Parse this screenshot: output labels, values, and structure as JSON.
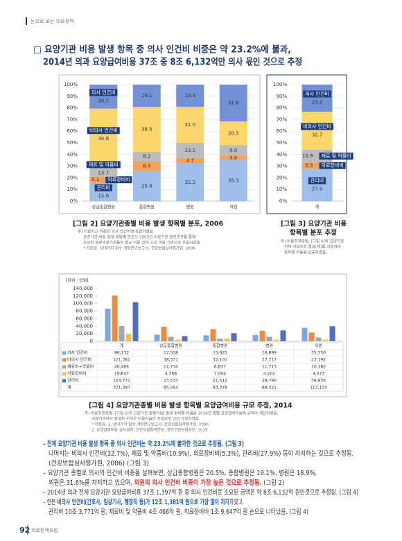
{
  "header": {
    "section": "눈으로 보는 의료정책"
  },
  "title": [
    "□ 요양기관 비용 발생 항목 중 의사 인건비 비중은 약 23.2%에 불과,",
    "2014년 의과 요양급여비용 37조 중 8조 6,132억만 의사 몫인 것으로 추정"
  ],
  "chart_data": [
    {
      "type": "bar",
      "stacked": true,
      "categories": [
        "상급종합병원",
        "종합병원",
        "병원",
        "의원"
      ],
      "ylim": [
        0,
        100
      ],
      "yticks": [
        {
          "value": 0,
          "label": "0%"
        },
        {
          "value": 10,
          "label": "10%"
        },
        {
          "value": 20,
          "label": "20%"
        },
        {
          "value": 30,
          "label": "30%"
        },
        {
          "value": 40,
          "label": "40%"
        },
        {
          "value": 50,
          "label": "50%"
        },
        {
          "value": 60,
          "label": "60%"
        },
        {
          "value": 70,
          "label": "70%"
        },
        {
          "value": 80,
          "label": "80%"
        },
        {
          "value": 90,
          "label": "90%"
        },
        {
          "value": 100,
          "label": "100%"
        }
      ],
      "grid": true,
      "series": [
        {
          "name": "관리비",
          "color": "#9dbfe9",
          "values": [
            15.8,
            25.8,
            32.2,
            35.3
          ],
          "value_labels": [
            "15.8",
            "25.8",
            "32.2",
            "35.3"
          ]
        },
        {
          "name": "의료장비비",
          "color": "#f4a25a",
          "values": [
            5.1,
            8.4,
            4.7,
            3.6
          ],
          "value_labels": [
            "5.1",
            "8.4",
            "4.7",
            "3.6"
          ]
        },
        {
          "name": "재료 및 약품비",
          "color": "#bcbcbc",
          "values": [
            13.7,
            8.2,
            13.1,
            9.0
          ],
          "value_labels": [
            "13.7",
            "8.2",
            "13.1",
            "9.0"
          ]
        },
        {
          "name": "비의사 인건비",
          "color": "#fbd66b",
          "values": [
            44.8,
            38.5,
            31.0,
            20.5
          ],
          "value_labels": [
            "44.8",
            "38.5",
            "31.0",
            "20.5"
          ]
        },
        {
          "name": "의사 인건비",
          "color": "#7391d6",
          "values": [
            20.5,
            19.1,
            18.9,
            31.6
          ],
          "value_labels": [
            "20.5",
            "19.1",
            "18.9",
            "31.6"
          ]
        }
      ],
      "caption": "[그림 2] 요양기관종별 비용 발생 항목별 분포, 2006",
      "notes": [
        "주) 의료사고 비용은 의사 인건비에 포함하였음.",
        "요양기관 비용 발생 항목별 분포는 2005년 의료기관 표본조사를 통해",
        "조사된 표본의료기관들의 평균 비용 급여 소요 비용 기준으로 산출되었음.",
        "* 자료원: 상대가치 점수 개정연구보고서, 건강보험심사평가원, 2006"
      ]
    },
    {
      "type": "bar",
      "stacked": true,
      "categories": [
        "계"
      ],
      "ylim": [
        0,
        100
      ],
      "yticks": [
        {
          "value": 0,
          "label": "0%"
        },
        {
          "value": 10,
          "label": "10%"
        },
        {
          "value": 20,
          "label": "20%"
        },
        {
          "value": 30,
          "label": "30%"
        },
        {
          "value": 40,
          "label": "40%"
        },
        {
          "value": 50,
          "label": "50%"
        },
        {
          "value": 60,
          "label": "60%"
        },
        {
          "value": 70,
          "label": "70%"
        },
        {
          "value": 80,
          "label": "80%"
        },
        {
          "value": 90,
          "label": "90%"
        },
        {
          "value": 100,
          "label": "100%"
        }
      ],
      "grid": true,
      "series": [
        {
          "name": "관리비",
          "color": "#9dbfe9",
          "values": [
            27.9
          ],
          "value_labels": [
            "27.9"
          ]
        },
        {
          "name": "의료장비비",
          "color": "#f4a25a",
          "values": [
            5.3
          ],
          "value_labels": [
            "5.3"
          ]
        },
        {
          "name": "재료 및 약품비",
          "color": "#bcbcbc",
          "values": [
            10.9
          ],
          "value_labels": [
            "10.9"
          ]
        },
        {
          "name": "비의사 인건비",
          "color": "#fbd66b",
          "values": [
            32.7
          ],
          "value_labels": [
            "32.7"
          ]
        },
        {
          "name": "의사 인건비",
          "color": "#7391d6",
          "values": [
            23.2
          ],
          "value_labels": [
            "23.2"
          ]
        }
      ],
      "caption": [
        "[그림 3] 요양기관 비용",
        "항목별 분포 추정"
      ],
      "notes": [
        "주) 비용추정방법: [그림 4]의 요양기관",
        "전체 비용추정 결과(계)를 이용하여",
        "항목별 비율을 산출하였음."
      ]
    },
    {
      "type": "bar",
      "stacked": false,
      "unit": "[단위 : 억원]",
      "categories": [
        "계",
        "상급종합병원",
        "종합병원",
        "병원",
        "의원"
      ],
      "ylim": [
        0,
        140000
      ],
      "yticks": [
        0,
        {
          "value": 20000,
          "label": "20,000"
        },
        {
          "value": 40000,
          "label": "40,000"
        },
        {
          "value": 60000,
          "label": "60,000"
        },
        {
          "value": 80000,
          "label": "80,000"
        },
        {
          "value": 100000,
          "label": "100,000"
        },
        {
          "value": 120000,
          "label": "120,000"
        },
        {
          "value": 140000,
          "label": "140,000"
        }
      ],
      "grid": false,
      "series": [
        {
          "name": "의사 인건비",
          "color": "#7ea6e0",
          "values": [
            86132,
            17558,
            15925,
            16899,
            35750
          ],
          "value_labels": [
            "86,132",
            "17,558",
            "15,925",
            "16,899",
            "35,750"
          ]
        },
        {
          "name": "비의사 인건비",
          "color": "#f08a3c",
          "values": [
            121381,
            38371,
            32101,
            27717,
            23192
          ],
          "value_labels": [
            "121,381",
            "38,371",
            "32,101",
            "27,717",
            "23,192"
          ]
        },
        {
          "name": "재료비+약품비",
          "color": "#a6a6a6",
          "values": [
            40466,
            11734,
            6837,
            11713,
            10182
          ],
          "value_labels": [
            "40,466",
            "11,734",
            "6,837",
            "11,713",
            "10,182"
          ]
        },
        {
          "name": "의료장비비",
          "color": "#f6c445",
          "values": [
            19647,
            4368,
            7004,
            4202,
            4073
          ],
          "value_labels": [
            "19,647",
            "4,368",
            "7,004",
            "4,202",
            "4,073"
          ]
        },
        {
          "name": "관리비",
          "color": "#4f6fc4",
          "values": [
            103771,
            13533,
            21512,
            28790,
            39936
          ],
          "value_labels": [
            "103,771",
            "13,533",
            "21,512",
            "28,790",
            "39,936"
          ]
        }
      ],
      "total": {
        "name": "계",
        "labels": [
          "371,397",
          "85,564",
          "83,378",
          "89,321",
          "113,134"
        ]
      },
      "caption": "[그림 4] 요양기관종별 비용 발생 항목별 요양급여비용 규모 추정, 2014",
      "notes": [
        "주) 비용추정방법: [그림 2]의 요양기관 종별 비용 발생 항목별 비율을 2014년 종별 요양급여비용에 곱하여 계산하였음.",
        "의료기관에서 발생한 수익은 비용지출로 포함되어 있다 가정하였음.",
        "* 자료원: 1. 상대가치 점수 개정연구보고서, 건강보험심사평가원, 2006",
        "2. 요양급여비용 심사실적, 건강보험통계연보, 국민건강보험공단, 2015"
      ]
    }
  ],
  "body": [
    [
      "– 전체 요양기관 비용 발생 항목 중 의사 인건비는 약 23.2%에 불과한 것으로 추정됨. (그림 3)"
    ],
    [
      "나머지는 비의사 인건비(32.7%), 재료 및 약품비(10.9%), 의료장비비(5.3%), 관리비(27.9%) 등이 차지하는 것으로 추정됨."
    ],
    [
      "(건강보험심사평가원, 2006) (그림 3)"
    ],
    [
      "– 요양기관 종별로 의사의 인건비 비중을 살펴보면, 상급종합병원은 20.5%, 종합병원은 19.1%, 병원은 18.9%,"
    ],
    [
      "의원은 31.6%를 차지하고 있으며, ",
      "의원의 의사 인건비 비중이 가장 높은 것으로 추정됨.",
      " (그림 2)"
    ],
    [
      "– 2014년 의과 전체 요양기관 요양급여비용 37조 1,397억 원 중 의사 인건비로 소요된 금액은 약 8조 6,132억 원인것으로 추정됨. (그림 4)"
    ],
    [
      "– 한편 ",
      "비의사 인건비(간호사, 임상기사, 행정직 등)가 12조 1,381억 원으로 가장 많이 차지",
      "하였고,"
    ],
    [
      "관리비 10조 3,771억 원, 재료비 및 약품비 4조 466억 원, 의료장비비 1조 9,647억 원 순으로 나타났음. (그림 4)"
    ]
  ],
  "footer": {
    "page": "92",
    "title": "의료정책포럼"
  }
}
